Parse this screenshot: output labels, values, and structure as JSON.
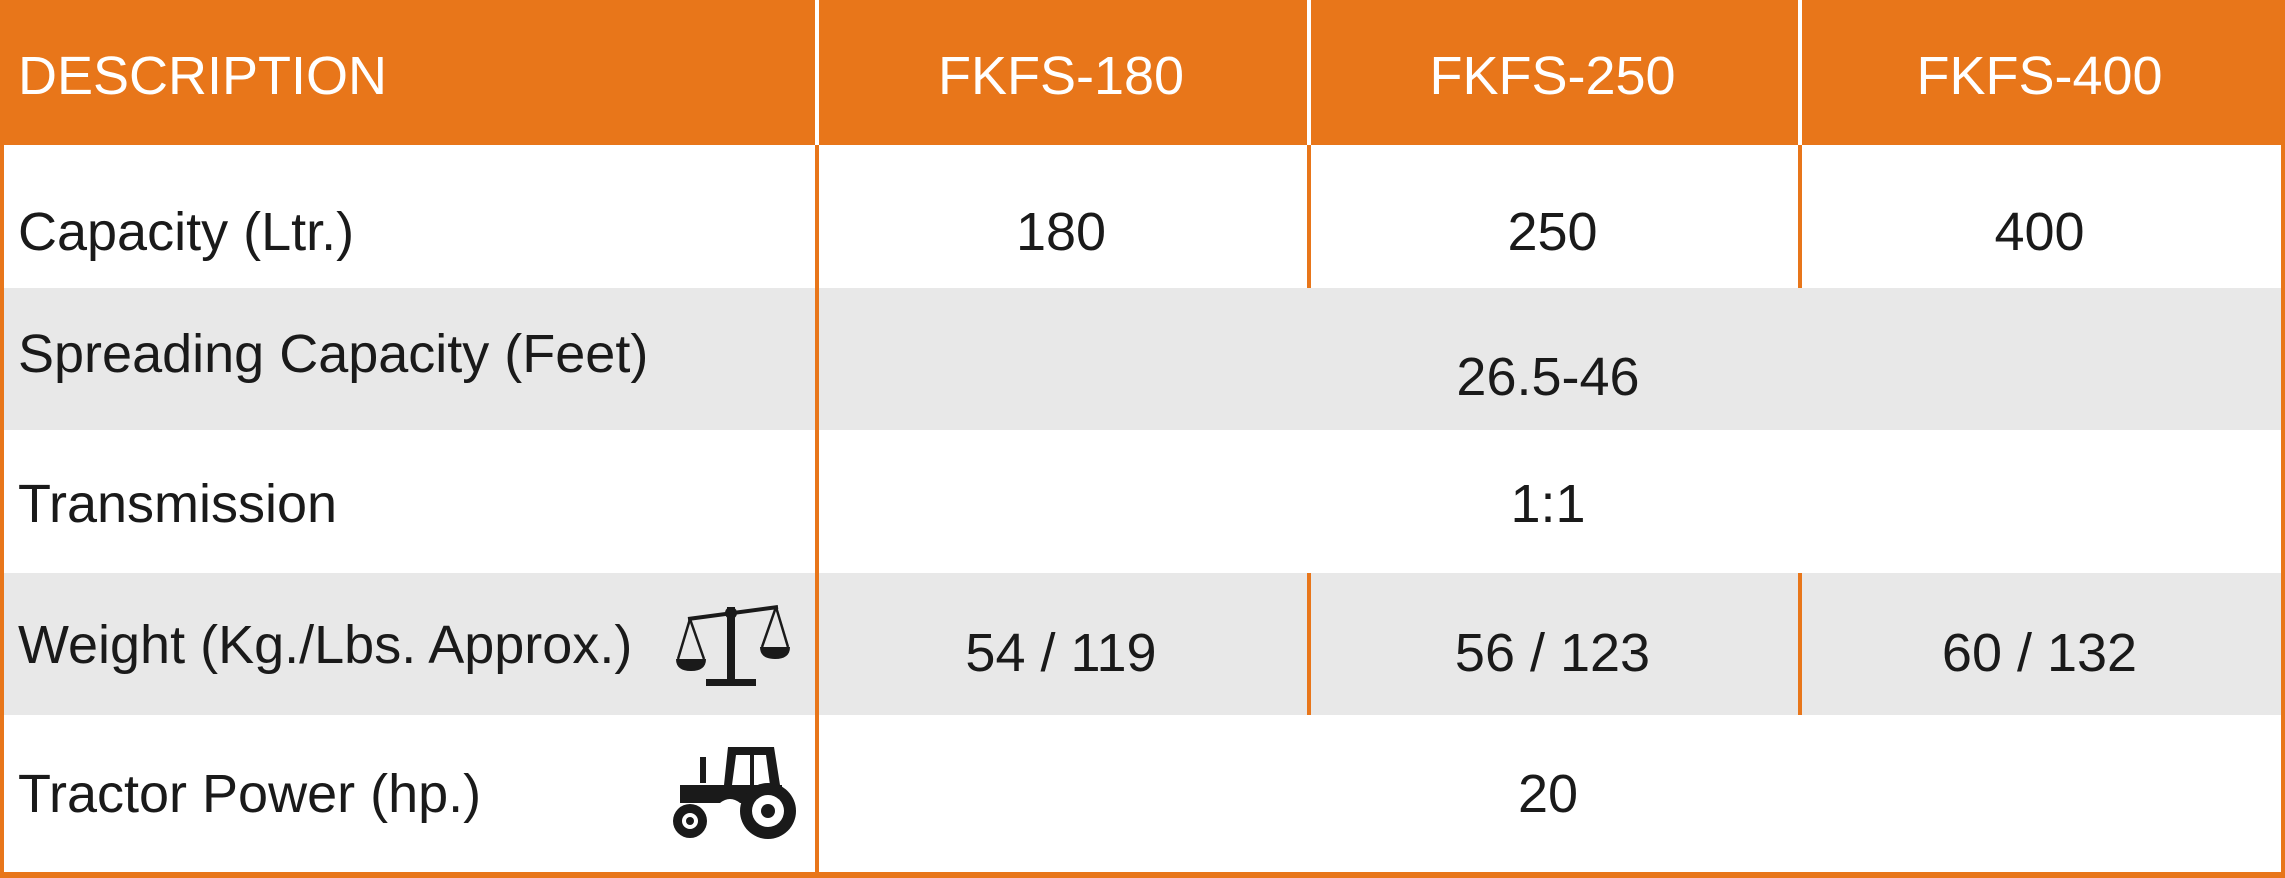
{
  "table": {
    "headers": [
      "DESCRIPTION",
      "FKFS-180",
      "FKFS-250",
      "FKFS-400"
    ],
    "rows": [
      {
        "label": "Capacity (Ltr.)",
        "values": [
          "180",
          "250",
          "400"
        ]
      },
      {
        "label": "Spreading Capacity (Feet)",
        "value": "26.5-46"
      },
      {
        "label": "Transmission",
        "value": "1:1"
      },
      {
        "label": "Weight (Kg./Lbs. Approx.)",
        "values": [
          "54 / 119",
          "56 / 123",
          "60 / 132"
        ],
        "icon": "balance-scale-icon"
      },
      {
        "label": "Tractor Power (hp.)",
        "value": "20",
        "icon": "tractor-icon"
      }
    ]
  },
  "colors": {
    "accent": "#e8761a",
    "stripe": "#e8e8e8",
    "text": "#1a1a1a"
  }
}
